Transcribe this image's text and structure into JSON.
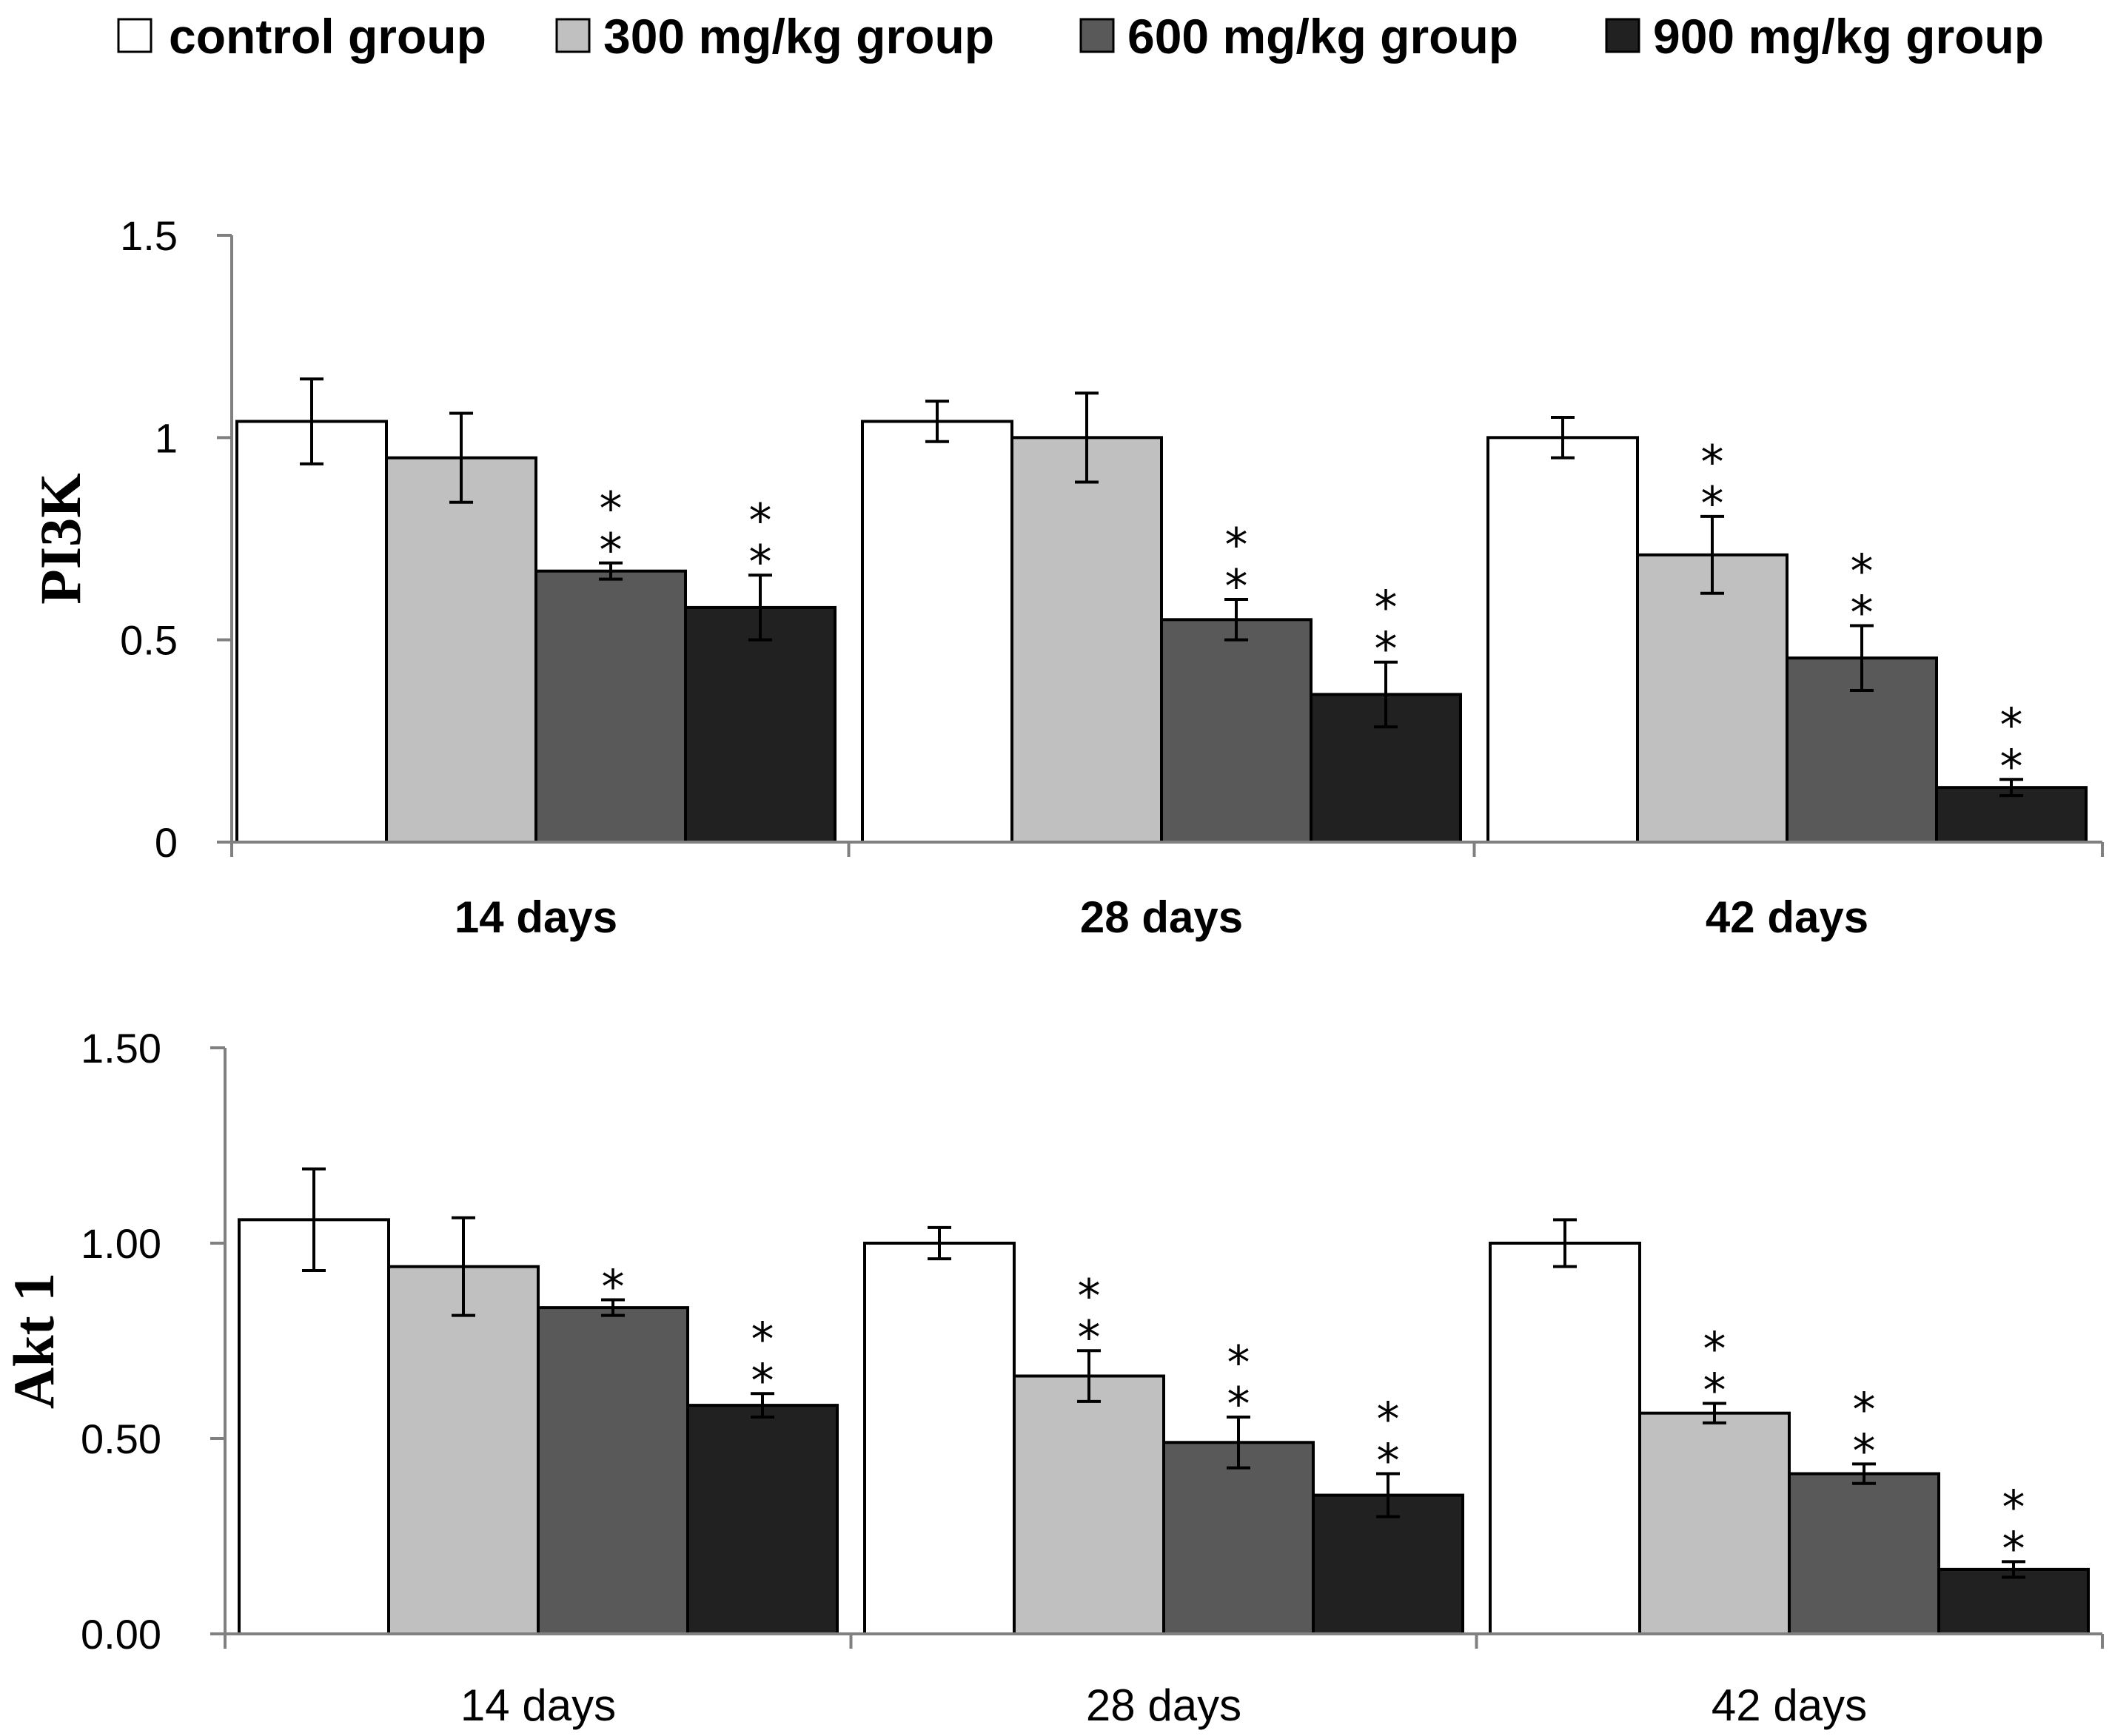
{
  "legend": [
    {
      "label": "control group",
      "color": "#ffffff"
    },
    {
      "label": "300 mg/kg group",
      "color": "#c0c0c0"
    },
    {
      "label": "600 mg/kg group",
      "color": "#595959"
    },
    {
      "label": "900 mg/kg group",
      "color": "#212121"
    }
  ],
  "chart_data": [
    {
      "type": "bar",
      "ylabel": "PI3K",
      "ylim": [
        0,
        1.5
      ],
      "yticks": [
        "0",
        "0.5",
        "1",
        "1.5"
      ],
      "ytick_values": [
        0,
        0.5,
        1,
        1.5
      ],
      "category_style": "bold",
      "categories": [
        "14 days",
        "28 days",
        "42 days"
      ],
      "series": [
        {
          "name": "control group",
          "values": [
            1.04,
            1.04,
            1.0
          ],
          "errors": [
            0.105,
            0.05,
            0.05
          ],
          "significance": [
            "",
            "",
            ""
          ]
        },
        {
          "name": "300 mg/kg group",
          "values": [
            0.95,
            1.0,
            0.71
          ],
          "errors": [
            0.11,
            0.11,
            0.095
          ],
          "significance": [
            "",
            "",
            "**"
          ]
        },
        {
          "name": "600 mg/kg group",
          "values": [
            0.67,
            0.55,
            0.455
          ],
          "errors": [
            0.02,
            0.05,
            0.08
          ],
          "significance": [
            "**",
            "**",
            "**"
          ]
        },
        {
          "name": "900 mg/kg group",
          "values": [
            0.58,
            0.365,
            0.135
          ],
          "errors": [
            0.08,
            0.08,
            0.02
          ],
          "significance": [
            "**",
            "**",
            "**"
          ]
        }
      ]
    },
    {
      "type": "bar",
      "ylabel": "Akt 1",
      "ylim": [
        0,
        1.5
      ],
      "yticks": [
        "0.00",
        "0.50",
        "1.00",
        "1.50"
      ],
      "ytick_values": [
        0,
        0.5,
        1,
        1.5
      ],
      "category_style": "normal",
      "categories": [
        "14 days",
        "28 days",
        "42 days"
      ],
      "series": [
        {
          "name": "control group",
          "values": [
            1.06,
            1.0,
            1.0
          ],
          "errors": [
            0.13,
            0.04,
            0.06
          ],
          "significance": [
            "",
            "",
            ""
          ]
        },
        {
          "name": "300 mg/kg group",
          "values": [
            0.94,
            0.66,
            0.565
          ],
          "errors": [
            0.125,
            0.065,
            0.025
          ],
          "significance": [
            "",
            "**",
            "**"
          ]
        },
        {
          "name": "600 mg/kg group",
          "values": [
            0.835,
            0.49,
            0.41
          ],
          "errors": [
            0.02,
            0.065,
            0.025
          ],
          "significance": [
            "*",
            "**",
            "**"
          ]
        },
        {
          "name": "900 mg/kg group",
          "values": [
            0.585,
            0.355,
            0.165
          ],
          "errors": [
            0.03,
            0.055,
            0.02
          ],
          "significance": [
            "**",
            "**",
            "**"
          ]
        }
      ]
    }
  ]
}
